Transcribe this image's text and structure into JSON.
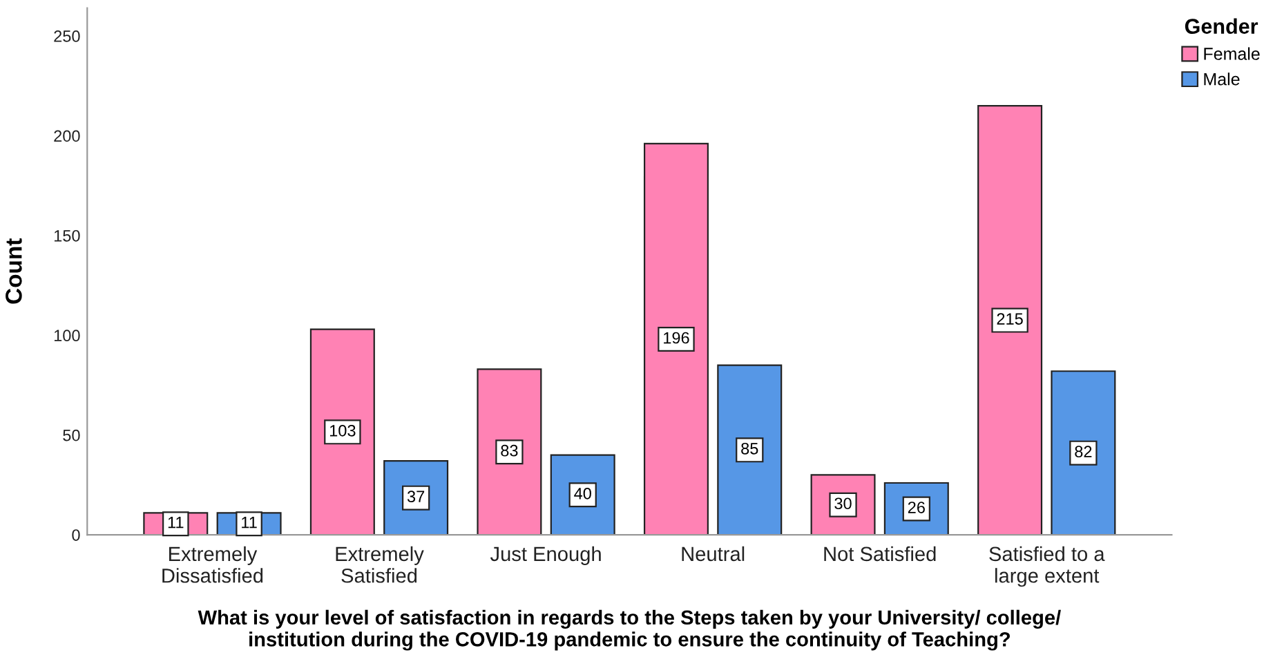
{
  "chart_data": {
    "type": "bar",
    "xlabel": "What is your level of satisfaction in regards to the Steps taken by your University/ college/\ninstitution during the COVID-19 pandemic to ensure the continuity of Teaching?",
    "ylabel": "Count",
    "legend_title": "Gender",
    "categories": [
      "Extremely\nDissatisfied",
      "Extremely\nSatisfied",
      "Just Enough",
      "Neutral",
      "Not Satisfied",
      "Satisfied to a\nlarge extent"
    ],
    "series": [
      {
        "name": "Female",
        "color": "#ff82b4",
        "values": [
          11,
          103,
          83,
          196,
          30,
          215
        ]
      },
      {
        "name": "Male",
        "color": "#5697e6",
        "values": [
          11,
          37,
          40,
          85,
          26,
          82
        ]
      }
    ],
    "ylim": [
      0,
      264
    ],
    "yticks": [
      0,
      50,
      100,
      150,
      200,
      250
    ],
    "data_labels": true,
    "grid": false,
    "legend": "top right"
  }
}
